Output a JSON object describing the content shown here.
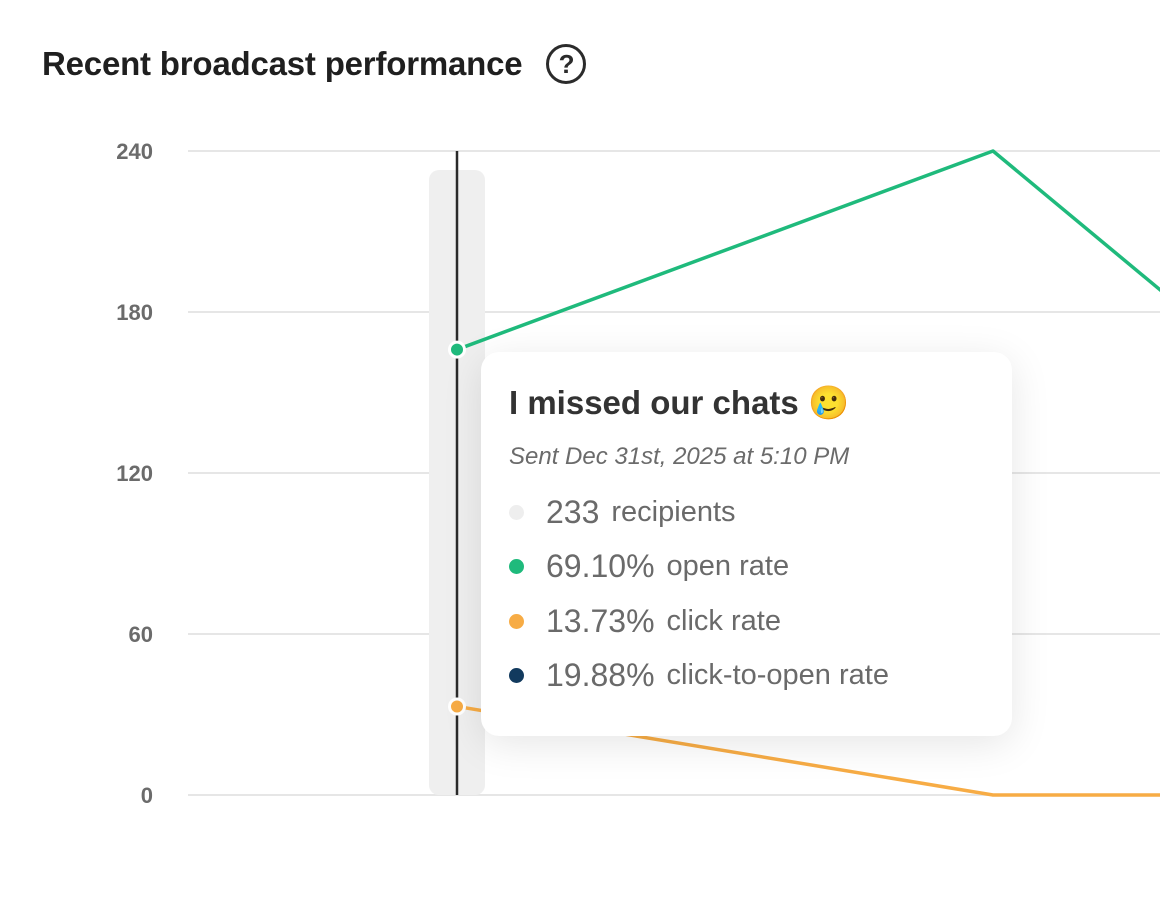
{
  "header": {
    "title": "Recent broadcast performance",
    "help_icon": "question-circle-icon",
    "help_glyph": "?"
  },
  "chart_data": {
    "type": "line",
    "ylim": [
      0,
      240
    ],
    "yticks": [
      "0",
      "60",
      "120",
      "180",
      "240"
    ],
    "grid": true,
    "x": [
      0,
      1,
      2
    ],
    "series": [
      {
        "key": "open",
        "color": "#1fba7c",
        "values": [
          166,
          240,
          74
        ]
      },
      {
        "key": "click",
        "color": "#f7ac45",
        "values": [
          33,
          0,
          0
        ]
      }
    ],
    "hover_index": 0
  },
  "tooltip": {
    "title": "I missed our chats",
    "emoji": "🥲",
    "sent": "Sent Dec 31st, 2025 at 5:10 PM",
    "rows": [
      {
        "value": "233",
        "label": "recipients",
        "color": "#eeeeee"
      },
      {
        "value": "69.10%",
        "label": "open rate",
        "color": "#1fba7c"
      },
      {
        "value": "13.73%",
        "label": "click rate",
        "color": "#f7ac45"
      },
      {
        "value": "19.88%",
        "label": "click-to-open rate",
        "color": "#123a5e"
      }
    ]
  }
}
